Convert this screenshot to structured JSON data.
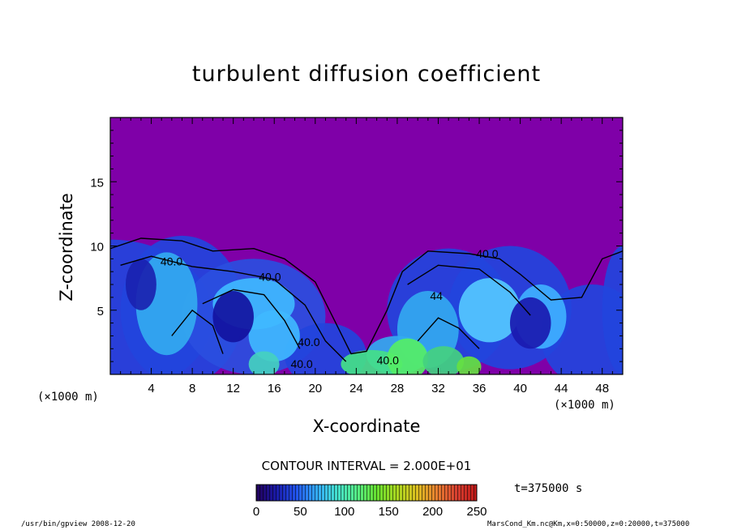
{
  "chart_data": {
    "type": "heatmap",
    "title": "turbulent diffusion coefficient",
    "xlabel": "X-coordinate",
    "ylabel": "Z-coordinate",
    "x_unit": "(×1000 m)",
    "y_unit": "(×1000 m)",
    "xlim": [
      0,
      50
    ],
    "ylim": [
      0,
      20
    ],
    "x_ticks": [
      4,
      8,
      12,
      16,
      20,
      24,
      28,
      32,
      36,
      40,
      44,
      48
    ],
    "y_ticks": [
      5,
      10,
      15
    ],
    "contour_labels": [
      {
        "text": "40.0",
        "x": 4.9,
        "z": 8.5
      },
      {
        "text": "40.0",
        "x": 14.5,
        "z": 7.3
      },
      {
        "text": "40.0",
        "x": 35.7,
        "z": 9.1
      },
      {
        "text": "40.0",
        "x": 18.3,
        "z": 2.2
      },
      {
        "text": "40.0",
        "x": 17.6,
        "z": 0.5
      },
      {
        "text": "40.0",
        "x": 26.0,
        "z": 0.8
      },
      {
        "text": "44",
        "x": 31.2,
        "z": 5.8
      }
    ],
    "contour_interval": "CONTOUR INTERVAL = 2.000E+01",
    "colorbar": {
      "min": 0,
      "max": 250,
      "ticks": [
        0,
        50,
        100,
        150,
        200,
        250
      ],
      "colors": [
        "#22005a",
        "#1a1aa8",
        "#2255ee",
        "#33aaff",
        "#44e0d0",
        "#55ee88",
        "#66e030",
        "#a8d820",
        "#dcc020",
        "#e88030",
        "#d84030",
        "#c01818"
      ]
    },
    "background_color": "#7f00a8",
    "time": "t=375000 s"
  },
  "footer": {
    "left": "/usr/bin/gpview   2008-12-20",
    "right": "MarsCond_Km.nc@Km,x=0:50000,z=0:20000,t=375000"
  }
}
